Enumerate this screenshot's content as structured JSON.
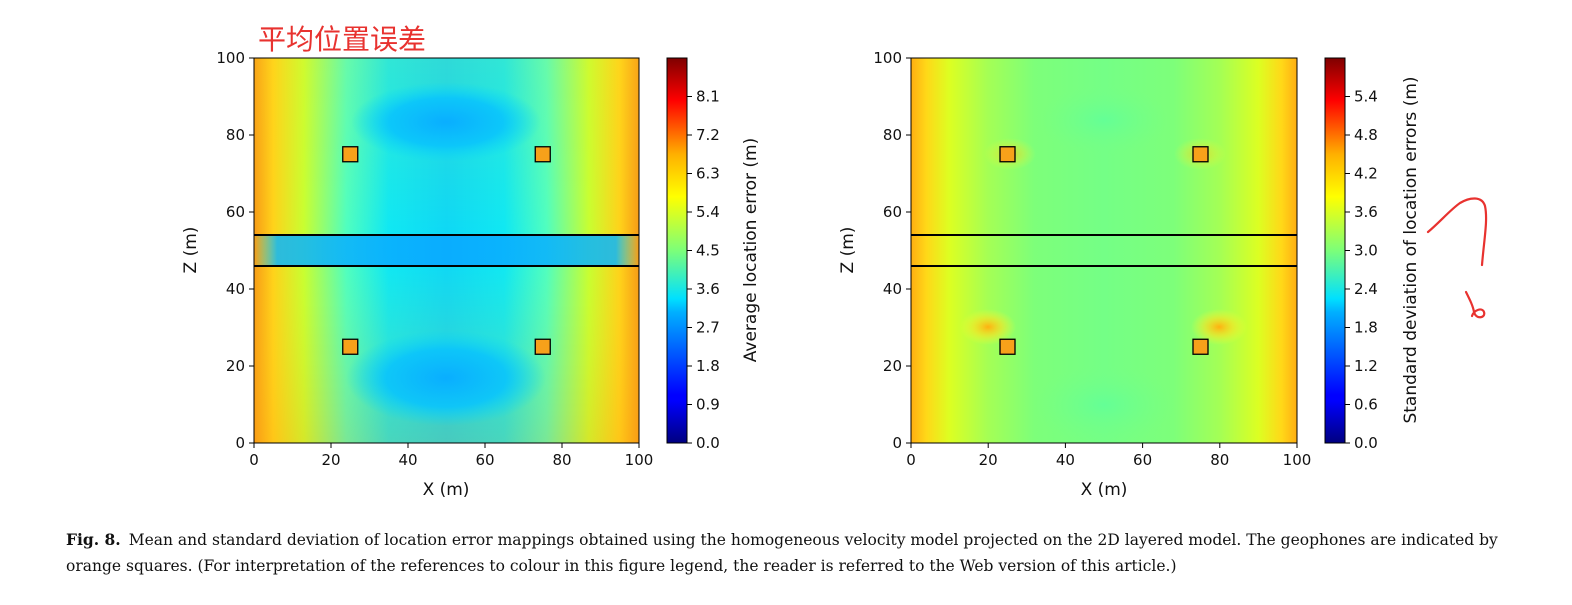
{
  "annotation": "平均位置误差",
  "caption": {
    "label": "Fig. 8.",
    "text": "Mean and standard deviation of location error mappings obtained using the homogeneous velocity model projected on the 2D layered model. The geophones are indicated by orange squares. (For interpretation of the references to colour in this figure legend, the reader is referred to the Web version of this article.)"
  },
  "chart_data": [
    {
      "type": "heatmap",
      "title": "",
      "xlabel": "X (m)",
      "ylabel": "Z (m)",
      "xlim": [
        0,
        100
      ],
      "ylim": [
        0,
        100
      ],
      "x_ticks": [
        0,
        20,
        40,
        60,
        80,
        100
      ],
      "y_ticks": [
        0,
        20,
        40,
        60,
        80,
        100
      ],
      "colorbar": {
        "label": "Average location error (m)",
        "range": [
          0.0,
          9.0
        ],
        "ticks": [
          "0.0",
          "0.9",
          "1.8",
          "2.7",
          "3.6",
          "4.5",
          "5.4",
          "6.3",
          "7.2",
          "8.1"
        ],
        "colormap": "jet"
      },
      "layer_boundaries_z": [
        46,
        54
      ],
      "geophones": [
        {
          "x": 25,
          "z": 75
        },
        {
          "x": 75,
          "z": 75
        },
        {
          "x": 25,
          "z": 25
        },
        {
          "x": 75,
          "z": 25
        }
      ],
      "geophone_color": "#f7a11a",
      "field_description": "approximate estimate: ~2.5 m in central region and along layer, rising to ~6-7 m at left and right edges"
    },
    {
      "type": "heatmap",
      "title": "",
      "xlabel": "X (m)",
      "ylabel": "Z (m)",
      "xlim": [
        0,
        100
      ],
      "ylim": [
        0,
        100
      ],
      "x_ticks": [
        0,
        20,
        40,
        60,
        80,
        100
      ],
      "y_ticks": [
        0,
        20,
        40,
        60,
        80,
        100
      ],
      "colorbar": {
        "label": "Standard deviation of location errors (m)",
        "range": [
          0.0,
          6.0
        ],
        "ticks": [
          "0.0",
          "0.6",
          "1.2",
          "1.8",
          "2.4",
          "3.0",
          "3.6",
          "4.2",
          "4.8",
          "5.4"
        ],
        "colormap": "jet"
      },
      "layer_boundaries_z": [
        46,
        54
      ],
      "geophones": [
        {
          "x": 25,
          "z": 75
        },
        {
          "x": 75,
          "z": 75
        },
        {
          "x": 25,
          "z": 25
        },
        {
          "x": 75,
          "z": 25
        }
      ],
      "geophone_color": "#f7a11a",
      "field_description": "approximate estimate: ~2.7 m in center, rising to ~4.5 m at left and right edges"
    }
  ]
}
